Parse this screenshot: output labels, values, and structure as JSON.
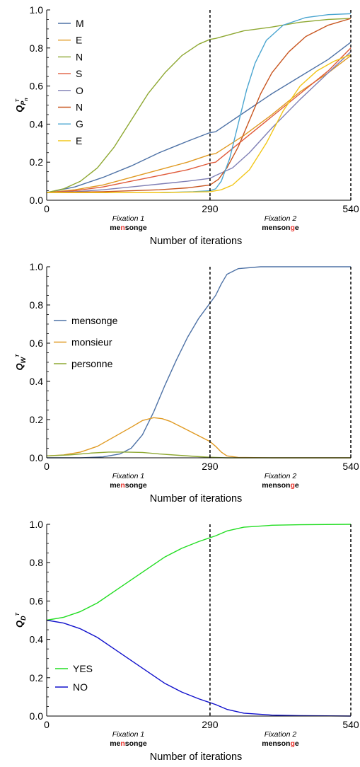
{
  "chart_data": [
    {
      "id": "letters",
      "type": "line",
      "ylabel": "Q",
      "ylabel_sub": "P",
      "ylabel_subsub": "n",
      "ylabel_sup": "T",
      "xlabel": "Number of iterations",
      "xlim": [
        0,
        540
      ],
      "ylim": [
        0,
        1.0
      ],
      "x_ticks": [
        0,
        290,
        540
      ],
      "y_ticks": [
        0.0,
        0.2,
        0.4,
        0.6,
        0.8,
        1.0
      ],
      "y_tick_labels": [
        "0.0",
        "0.2",
        "0.4",
        "0.6",
        "0.8",
        "1.0"
      ],
      "vlines": [
        290,
        540
      ],
      "fixations": [
        {
          "label": "Fixation 1",
          "x": 145,
          "word_pre": "me",
          "word_hl": "n",
          "word_post": "songe"
        },
        {
          "label": "Fixation 2",
          "x": 415,
          "word_pre": "menson",
          "word_hl": "g",
          "word_post": "e"
        }
      ],
      "legend_position": "top-left",
      "series": [
        {
          "name": "M",
          "color": "#4e72a6",
          "points": [
            [
              0,
              0.04
            ],
            [
              50,
              0.07
            ],
            [
              100,
              0.12
            ],
            [
              150,
              0.18
            ],
            [
              200,
              0.25
            ],
            [
              250,
              0.31
            ],
            [
              285,
              0.35
            ],
            [
              290,
              0.355
            ],
            [
              300,
              0.36
            ],
            [
              350,
              0.46
            ],
            [
              400,
              0.56
            ],
            [
              450,
              0.65
            ],
            [
              500,
              0.74
            ],
            [
              540,
              0.83
            ]
          ]
        },
        {
          "name": "E",
          "color": "#e09a22",
          "points": [
            [
              0,
              0.04
            ],
            [
              50,
              0.055
            ],
            [
              100,
              0.08
            ],
            [
              150,
              0.12
            ],
            [
              200,
              0.16
            ],
            [
              250,
              0.2
            ],
            [
              285,
              0.235
            ],
            [
              290,
              0.24
            ],
            [
              300,
              0.245
            ],
            [
              350,
              0.34
            ],
            [
              400,
              0.45
            ],
            [
              450,
              0.57
            ],
            [
              500,
              0.67
            ],
            [
              540,
              0.76
            ]
          ]
        },
        {
          "name": "N",
          "color": "#8ea832",
          "points": [
            [
              0,
              0.04
            ],
            [
              30,
              0.06
            ],
            [
              60,
              0.1
            ],
            [
              90,
              0.17
            ],
            [
              120,
              0.28
            ],
            [
              150,
              0.42
            ],
            [
              180,
              0.56
            ],
            [
              210,
              0.67
            ],
            [
              240,
              0.76
            ],
            [
              270,
              0.82
            ],
            [
              290,
              0.845
            ],
            [
              300,
              0.85
            ],
            [
              350,
              0.89
            ],
            [
              400,
              0.91
            ],
            [
              450,
              0.935
            ],
            [
              500,
              0.95
            ],
            [
              540,
              0.955
            ]
          ]
        },
        {
          "name": "S",
          "color": "#e05a3a",
          "points": [
            [
              0,
              0.04
            ],
            [
              50,
              0.05
            ],
            [
              100,
              0.07
            ],
            [
              150,
              0.1
            ],
            [
              200,
              0.13
            ],
            [
              250,
              0.16
            ],
            [
              285,
              0.19
            ],
            [
              290,
              0.195
            ],
            [
              300,
              0.2
            ],
            [
              350,
              0.32
            ],
            [
              400,
              0.44
            ],
            [
              450,
              0.56
            ],
            [
              500,
              0.68
            ],
            [
              540,
              0.8
            ]
          ]
        },
        {
          "name": "O",
          "color": "#7f7fb5",
          "points": [
            [
              0,
              0.04
            ],
            [
              50,
              0.045
            ],
            [
              100,
              0.055
            ],
            [
              150,
              0.07
            ],
            [
              200,
              0.085
            ],
            [
              250,
              0.1
            ],
            [
              290,
              0.115
            ],
            [
              300,
              0.13
            ],
            [
              330,
              0.17
            ],
            [
              360,
              0.25
            ],
            [
              400,
              0.38
            ],
            [
              450,
              0.53
            ],
            [
              500,
              0.67
            ],
            [
              540,
              0.78
            ]
          ]
        },
        {
          "name": "N",
          "color": "#c8551f",
          "points": [
            [
              0,
              0.04
            ],
            [
              100,
              0.045
            ],
            [
              200,
              0.055
            ],
            [
              250,
              0.065
            ],
            [
              290,
              0.08
            ],
            [
              305,
              0.11
            ],
            [
              320,
              0.17
            ],
            [
              340,
              0.28
            ],
            [
              360,
              0.42
            ],
            [
              380,
              0.56
            ],
            [
              400,
              0.67
            ],
            [
              430,
              0.78
            ],
            [
              460,
              0.86
            ],
            [
              500,
              0.92
            ],
            [
              540,
              0.955
            ]
          ]
        },
        {
          "name": "G",
          "color": "#4aa5d0",
          "points": [
            [
              0,
              0.04
            ],
            [
              100,
              0.04
            ],
            [
              200,
              0.04
            ],
            [
              260,
              0.045
            ],
            [
              290,
              0.05
            ],
            [
              300,
              0.06
            ],
            [
              310,
              0.1
            ],
            [
              325,
              0.22
            ],
            [
              340,
              0.4
            ],
            [
              355,
              0.58
            ],
            [
              370,
              0.72
            ],
            [
              390,
              0.84
            ],
            [
              420,
              0.92
            ],
            [
              460,
              0.96
            ],
            [
              500,
              0.975
            ],
            [
              540,
              0.98
            ]
          ]
        },
        {
          "name": "E",
          "color": "#f2c618",
          "points": [
            [
              0,
              0.04
            ],
            [
              100,
              0.04
            ],
            [
              200,
              0.04
            ],
            [
              290,
              0.045
            ],
            [
              310,
              0.055
            ],
            [
              330,
              0.08
            ],
            [
              360,
              0.16
            ],
            [
              390,
              0.3
            ],
            [
              420,
              0.47
            ],
            [
              450,
              0.6
            ],
            [
              480,
              0.68
            ],
            [
              510,
              0.73
            ],
            [
              540,
              0.765
            ]
          ]
        }
      ]
    },
    {
      "id": "words",
      "type": "line",
      "ylabel": "Q",
      "ylabel_sub": "W",
      "ylabel_sup": "T",
      "xlabel": "Number of iterations",
      "xlim": [
        0,
        540
      ],
      "ylim": [
        0,
        1.0
      ],
      "x_ticks": [
        0,
        290,
        540
      ],
      "y_ticks": [
        0.0,
        0.2,
        0.4,
        0.6,
        0.8,
        1.0
      ],
      "y_tick_labels": [
        "0.0",
        "0.2",
        "0.4",
        "0.6",
        "0.8",
        "1.0"
      ],
      "vlines": [
        290,
        540
      ],
      "fixations": [
        {
          "label": "Fixation 1",
          "x": 145,
          "word_pre": "me",
          "word_hl": "n",
          "word_post": "songe"
        },
        {
          "label": "Fixation 2",
          "x": 415,
          "word_pre": "menson",
          "word_hl": "g",
          "word_post": "e"
        }
      ],
      "legend_position": "center-left",
      "series": [
        {
          "name": "mensonge",
          "color": "#4e72a6",
          "points": [
            [
              0,
              0.0
            ],
            [
              60,
              0.0
            ],
            [
              100,
              0.005
            ],
            [
              130,
              0.02
            ],
            [
              150,
              0.05
            ],
            [
              170,
              0.12
            ],
            [
              190,
              0.24
            ],
            [
              210,
              0.38
            ],
            [
              230,
              0.51
            ],
            [
              250,
              0.63
            ],
            [
              270,
              0.73
            ],
            [
              290,
              0.81
            ],
            [
              300,
              0.85
            ],
            [
              310,
              0.91
            ],
            [
              320,
              0.96
            ],
            [
              340,
              0.99
            ],
            [
              380,
              1.0
            ],
            [
              540,
              1.0
            ]
          ]
        },
        {
          "name": "monsieur",
          "color": "#e09a22",
          "points": [
            [
              0,
              0.01
            ],
            [
              30,
              0.015
            ],
            [
              60,
              0.03
            ],
            [
              90,
              0.06
            ],
            [
              120,
              0.11
            ],
            [
              150,
              0.16
            ],
            [
              170,
              0.195
            ],
            [
              190,
              0.21
            ],
            [
              205,
              0.205
            ],
            [
              220,
              0.19
            ],
            [
              240,
              0.16
            ],
            [
              260,
              0.13
            ],
            [
              280,
              0.1
            ],
            [
              290,
              0.085
            ],
            [
              300,
              0.06
            ],
            [
              310,
              0.03
            ],
            [
              320,
              0.01
            ],
            [
              340,
              0.002
            ],
            [
              400,
              0.0
            ],
            [
              540,
              0.0
            ]
          ]
        },
        {
          "name": "personne",
          "color": "#8ea832",
          "points": [
            [
              0,
              0.01
            ],
            [
              40,
              0.015
            ],
            [
              80,
              0.025
            ],
            [
              110,
              0.03
            ],
            [
              140,
              0.03
            ],
            [
              170,
              0.028
            ],
            [
              200,
              0.02
            ],
            [
              240,
              0.012
            ],
            [
              270,
              0.006
            ],
            [
              290,
              0.003
            ],
            [
              320,
              0.0
            ],
            [
              540,
              0.0
            ]
          ]
        }
      ]
    },
    {
      "id": "decision",
      "type": "line",
      "ylabel": "Q",
      "ylabel_sub": "D",
      "ylabel_sup": "T",
      "xlabel": "Number of iterations",
      "xlim": [
        0,
        540
      ],
      "ylim": [
        0,
        1.0
      ],
      "x_ticks": [
        0,
        290,
        540
      ],
      "y_ticks": [
        0.0,
        0.2,
        0.4,
        0.6,
        0.8,
        1.0
      ],
      "y_tick_labels": [
        "0.0",
        "0.2",
        "0.4",
        "0.6",
        "0.8",
        "1.0"
      ],
      "vlines": [
        290,
        540
      ],
      "fixations": [
        {
          "label": "Fixation 1",
          "x": 145,
          "word_pre": "me",
          "word_hl": "n",
          "word_post": "songe"
        },
        {
          "label": "Fixation 2",
          "x": 415,
          "word_pre": "menson",
          "word_hl": "g",
          "word_post": "e"
        }
      ],
      "legend_position": "bottom-left",
      "series": [
        {
          "name": "YES",
          "color": "#22dd22",
          "points": [
            [
              0,
              0.5
            ],
            [
              30,
              0.515
            ],
            [
              60,
              0.545
            ],
            [
              90,
              0.59
            ],
            [
              120,
              0.65
            ],
            [
              150,
              0.71
            ],
            [
              180,
              0.77
            ],
            [
              210,
              0.83
            ],
            [
              240,
              0.875
            ],
            [
              270,
              0.91
            ],
            [
              290,
              0.93
            ],
            [
              300,
              0.94
            ],
            [
              320,
              0.965
            ],
            [
              350,
              0.985
            ],
            [
              400,
              0.995
            ],
            [
              450,
              0.998
            ],
            [
              540,
              1.0
            ]
          ]
        },
        {
          "name": "NO",
          "color": "#1111cc",
          "points": [
            [
              0,
              0.5
            ],
            [
              30,
              0.485
            ],
            [
              60,
              0.455
            ],
            [
              90,
              0.41
            ],
            [
              120,
              0.35
            ],
            [
              150,
              0.29
            ],
            [
              180,
              0.23
            ],
            [
              210,
              0.17
            ],
            [
              240,
              0.125
            ],
            [
              270,
              0.09
            ],
            [
              290,
              0.07
            ],
            [
              300,
              0.06
            ],
            [
              320,
              0.035
            ],
            [
              350,
              0.015
            ],
            [
              400,
              0.005
            ],
            [
              450,
              0.002
            ],
            [
              540,
              0.0
            ]
          ]
        }
      ]
    }
  ]
}
